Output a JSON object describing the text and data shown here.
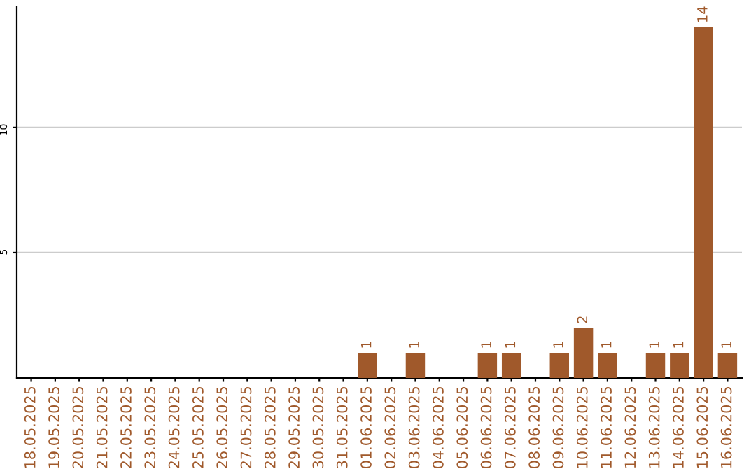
{
  "chart_data": {
    "type": "bar",
    "categories": [
      "18.05.2025",
      "19.05.2025",
      "20.05.2025",
      "21.05.2025",
      "22.05.2025",
      "23.05.2025",
      "24.05.2025",
      "25.05.2025",
      "26.05.2025",
      "27.05.2025",
      "28.05.2025",
      "29.05.2025",
      "30.05.2025",
      "31.05.2025",
      "01.06.2025",
      "02.06.2025",
      "03.06.2025",
      "04.06.2025",
      "05.06.2025",
      "06.06.2025",
      "07.06.2025",
      "08.06.2025",
      "09.06.2025",
      "10.06.2025",
      "11.06.2025",
      "12.06.2025",
      "13.06.2025",
      "14.06.2025",
      "15.06.2025",
      "16.06.2025"
    ],
    "values": [
      0,
      0,
      0,
      0,
      0,
      0,
      0,
      0,
      0,
      0,
      0,
      0,
      0,
      0,
      1,
      0,
      1,
      0,
      0,
      1,
      1,
      0,
      1,
      2,
      1,
      0,
      1,
      1,
      14,
      1
    ],
    "value_labels": [
      null,
      null,
      null,
      null,
      null,
      null,
      null,
      null,
      null,
      null,
      null,
      null,
      null,
      null,
      "1",
      null,
      "1",
      null,
      null,
      "1",
      "1",
      null,
      "1",
      "2",
      "1",
      null,
      "1",
      "1",
      "14",
      "1"
    ],
    "color": "#a0592b",
    "ylim": [
      0,
      14.8
    ],
    "yticks": [
      5,
      10
    ],
    "grid": "y"
  }
}
